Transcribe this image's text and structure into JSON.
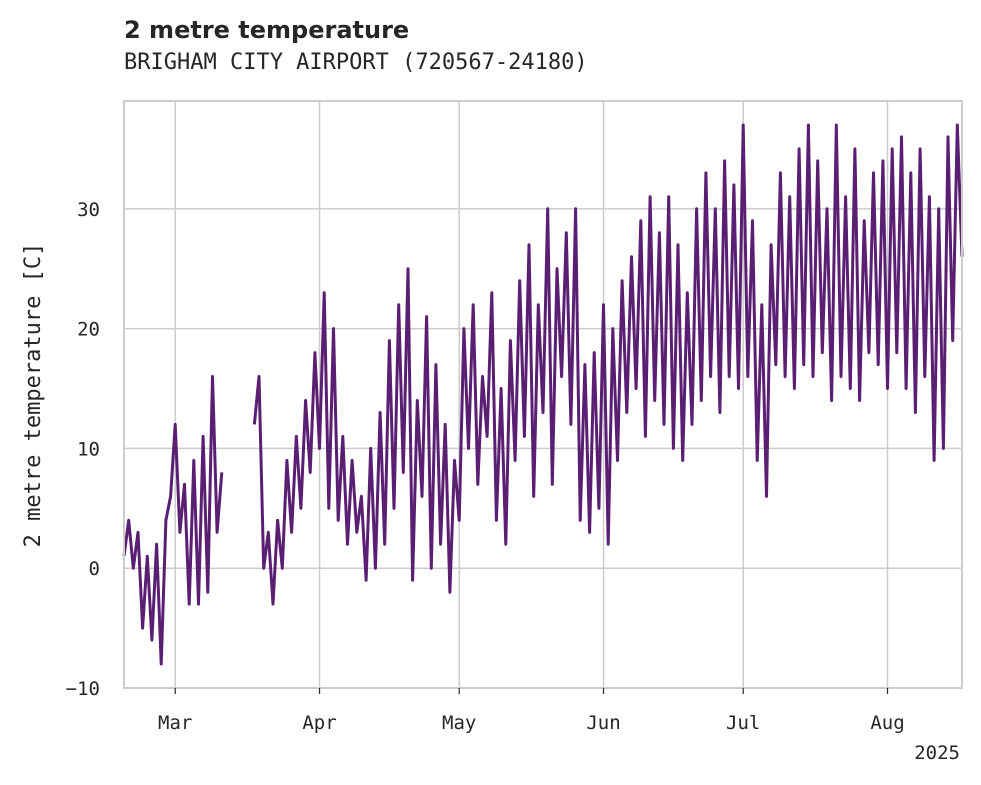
{
  "header": {
    "title": "2 metre temperature",
    "subtitle": "BRIGHAM CITY AIRPORT (720567-24180)"
  },
  "colors": {
    "line": "#5a1f72",
    "grid": "#cccccc",
    "axis": "#cccccc",
    "text": "#262626"
  },
  "chart_data": {
    "type": "line",
    "ylabel": "2 metre temperature [C]",
    "year_label": "2025",
    "ylim": [
      -10,
      39
    ],
    "xlim": [
      "2025-02-18",
      "2025-08-17"
    ],
    "y_ticks": [
      -10,
      0,
      10,
      20,
      30
    ],
    "x_ticks": [
      {
        "date": "2025-03-01",
        "label": "Mar"
      },
      {
        "date": "2025-04-01",
        "label": "Apr"
      },
      {
        "date": "2025-05-01",
        "label": "May"
      },
      {
        "date": "2025-06-01",
        "label": "Jun"
      },
      {
        "date": "2025-07-01",
        "label": "Jul"
      },
      {
        "date": "2025-08-01",
        "label": "Aug"
      }
    ],
    "grid": true,
    "series": [
      {
        "segments": [
          [
            [
              "2025-02-18",
              1
            ],
            [
              "2025-02-19",
              4
            ],
            [
              "2025-02-20",
              0
            ],
            [
              "2025-02-21",
              3
            ],
            [
              "2025-02-22",
              -5
            ],
            [
              "2025-02-23",
              1
            ],
            [
              "2025-02-24",
              -6
            ],
            [
              "2025-02-25",
              2
            ],
            [
              "2025-02-26",
              -8
            ],
            [
              "2025-02-27",
              4
            ],
            [
              "2025-02-28",
              6
            ],
            [
              "2025-03-01",
              12
            ],
            [
              "2025-03-02",
              3
            ],
            [
              "2025-03-03",
              7
            ],
            [
              "2025-03-04",
              -3
            ],
            [
              "2025-03-05",
              9
            ],
            [
              "2025-03-06",
              -3
            ],
            [
              "2025-03-07",
              11
            ],
            [
              "2025-03-08",
              -2
            ],
            [
              "2025-03-09",
              16
            ],
            [
              "2025-03-10",
              3
            ],
            [
              "2025-03-11",
              8
            ]
          ],
          [
            [
              "2025-03-18",
              12
            ],
            [
              "2025-03-19",
              16
            ],
            [
              "2025-03-20",
              0
            ],
            [
              "2025-03-21",
              3
            ],
            [
              "2025-03-22",
              -3
            ],
            [
              "2025-03-23",
              4
            ],
            [
              "2025-03-24",
              0
            ],
            [
              "2025-03-25",
              9
            ],
            [
              "2025-03-26",
              3
            ],
            [
              "2025-03-27",
              11
            ],
            [
              "2025-03-28",
              5
            ],
            [
              "2025-03-29",
              14
            ],
            [
              "2025-03-30",
              8
            ],
            [
              "2025-03-31",
              18
            ],
            [
              "2025-04-01",
              10
            ],
            [
              "2025-04-02",
              23
            ],
            [
              "2025-04-03",
              5
            ],
            [
              "2025-04-04",
              20
            ],
            [
              "2025-04-05",
              4
            ],
            [
              "2025-04-06",
              11
            ],
            [
              "2025-04-07",
              2
            ],
            [
              "2025-04-08",
              9
            ],
            [
              "2025-04-09",
              3
            ],
            [
              "2025-04-10",
              6
            ],
            [
              "2025-04-11",
              -1
            ],
            [
              "2025-04-12",
              10
            ],
            [
              "2025-04-13",
              0
            ],
            [
              "2025-04-14",
              13
            ],
            [
              "2025-04-15",
              2
            ],
            [
              "2025-04-16",
              19
            ],
            [
              "2025-04-17",
              5
            ],
            [
              "2025-04-18",
              22
            ],
            [
              "2025-04-19",
              8
            ],
            [
              "2025-04-20",
              25
            ],
            [
              "2025-04-21",
              -1
            ],
            [
              "2025-04-22",
              14
            ],
            [
              "2025-04-23",
              6
            ],
            [
              "2025-04-24",
              21
            ],
            [
              "2025-04-25",
              0
            ],
            [
              "2025-04-26",
              17
            ],
            [
              "2025-04-27",
              2
            ],
            [
              "2025-04-28",
              12
            ],
            [
              "2025-04-29",
              -2
            ],
            [
              "2025-04-30",
              9
            ],
            [
              "2025-05-01",
              4
            ],
            [
              "2025-05-02",
              20
            ],
            [
              "2025-05-03",
              10
            ],
            [
              "2025-05-04",
              22
            ],
            [
              "2025-05-05",
              7
            ],
            [
              "2025-05-06",
              16
            ],
            [
              "2025-05-07",
              11
            ],
            [
              "2025-05-08",
              23
            ],
            [
              "2025-05-09",
              4
            ],
            [
              "2025-05-10",
              15
            ],
            [
              "2025-05-11",
              2
            ],
            [
              "2025-05-12",
              19
            ],
            [
              "2025-05-13",
              9
            ],
            [
              "2025-05-14",
              24
            ],
            [
              "2025-05-15",
              11
            ],
            [
              "2025-05-16",
              27
            ],
            [
              "2025-05-17",
              6
            ],
            [
              "2025-05-18",
              22
            ],
            [
              "2025-05-19",
              13
            ],
            [
              "2025-05-20",
              30
            ],
            [
              "2025-05-21",
              7
            ],
            [
              "2025-05-22",
              25
            ],
            [
              "2025-05-23",
              16
            ],
            [
              "2025-05-24",
              28
            ],
            [
              "2025-05-25",
              12
            ],
            [
              "2025-05-26",
              30
            ],
            [
              "2025-05-27",
              4
            ],
            [
              "2025-05-28",
              17
            ],
            [
              "2025-05-29",
              3
            ],
            [
              "2025-05-30",
              18
            ],
            [
              "2025-05-31",
              5
            ],
            [
              "2025-06-01",
              22
            ],
            [
              "2025-06-02",
              2
            ],
            [
              "2025-06-03",
              20
            ],
            [
              "2025-06-04",
              9
            ],
            [
              "2025-06-05",
              24
            ],
            [
              "2025-06-06",
              13
            ],
            [
              "2025-06-07",
              26
            ],
            [
              "2025-06-08",
              15
            ],
            [
              "2025-06-09",
              29
            ],
            [
              "2025-06-10",
              11
            ],
            [
              "2025-06-11",
              31
            ],
            [
              "2025-06-12",
              14
            ],
            [
              "2025-06-13",
              28
            ],
            [
              "2025-06-14",
              12
            ],
            [
              "2025-06-15",
              31
            ],
            [
              "2025-06-16",
              10
            ],
            [
              "2025-06-17",
              27
            ],
            [
              "2025-06-18",
              9
            ],
            [
              "2025-06-19",
              23
            ],
            [
              "2025-06-20",
              12
            ],
            [
              "2025-06-21",
              30
            ],
            [
              "2025-06-22",
              14
            ],
            [
              "2025-06-23",
              33
            ],
            [
              "2025-06-24",
              16
            ],
            [
              "2025-06-25",
              30
            ],
            [
              "2025-06-26",
              13
            ],
            [
              "2025-06-27",
              34
            ],
            [
              "2025-06-28",
              16
            ],
            [
              "2025-06-29",
              32
            ],
            [
              "2025-06-30",
              15
            ],
            [
              "2025-07-01",
              37
            ],
            [
              "2025-07-02",
              16
            ],
            [
              "2025-07-03",
              29
            ],
            [
              "2025-07-04",
              9
            ],
            [
              "2025-07-05",
              22
            ],
            [
              "2025-07-06",
              6
            ],
            [
              "2025-07-07",
              27
            ],
            [
              "2025-07-08",
              17
            ],
            [
              "2025-07-09",
              33
            ],
            [
              "2025-07-10",
              16
            ],
            [
              "2025-07-11",
              31
            ],
            [
              "2025-07-12",
              15
            ],
            [
              "2025-07-13",
              35
            ],
            [
              "2025-07-14",
              17
            ],
            [
              "2025-07-15",
              37
            ],
            [
              "2025-07-16",
              16
            ],
            [
              "2025-07-17",
              34
            ],
            [
              "2025-07-18",
              18
            ],
            [
              "2025-07-19",
              30
            ],
            [
              "2025-07-20",
              14
            ],
            [
              "2025-07-21",
              37
            ],
            [
              "2025-07-22",
              16
            ],
            [
              "2025-07-23",
              31
            ],
            [
              "2025-07-24",
              15
            ],
            [
              "2025-07-25",
              35
            ],
            [
              "2025-07-26",
              14
            ],
            [
              "2025-07-27",
              29
            ],
            [
              "2025-07-28",
              18
            ],
            [
              "2025-07-29",
              33
            ],
            [
              "2025-07-30",
              17
            ],
            [
              "2025-07-31",
              34
            ],
            [
              "2025-08-01",
              15
            ],
            [
              "2025-08-02",
              35
            ],
            [
              "2025-08-03",
              18
            ],
            [
              "2025-08-04",
              36
            ],
            [
              "2025-08-05",
              15
            ],
            [
              "2025-08-06",
              33
            ],
            [
              "2025-08-07",
              13
            ],
            [
              "2025-08-08",
              35
            ],
            [
              "2025-08-09",
              16
            ],
            [
              "2025-08-10",
              31
            ],
            [
              "2025-08-11",
              9
            ],
            [
              "2025-08-12",
              30
            ],
            [
              "2025-08-13",
              10
            ],
            [
              "2025-08-14",
              36
            ],
            [
              "2025-08-15",
              19
            ],
            [
              "2025-08-16",
              37
            ],
            [
              "2025-08-17",
              26
            ]
          ]
        ]
      }
    ]
  }
}
